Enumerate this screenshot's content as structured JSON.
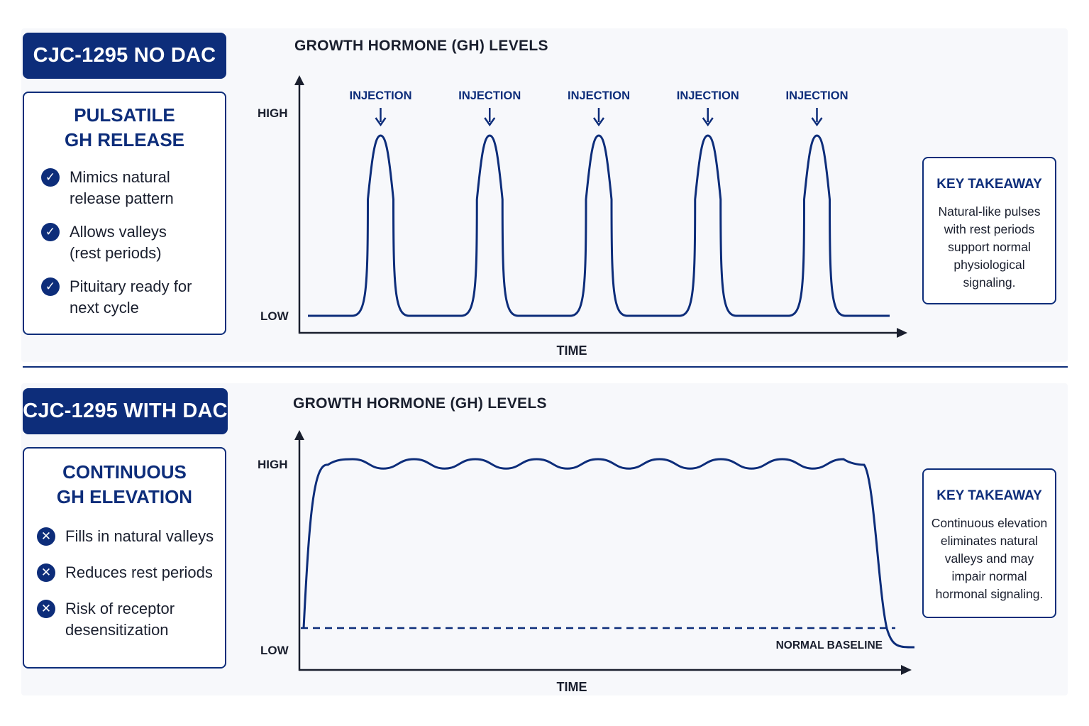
{
  "top": {
    "badge": "CJC-1295 NO DAC",
    "info_heading": "PULSATILE\nGH RELEASE",
    "bullets": [
      {
        "icon": "check-icon",
        "text": "Mimics natural\nrelease pattern"
      },
      {
        "icon": "check-icon",
        "text": "Allows valleys\n(rest periods)"
      },
      {
        "icon": "check-icon",
        "text": "Pituitary ready for\nnext cycle"
      }
    ],
    "chart_title": "GROWTH HORMONE (GH) LEVELS",
    "takeaway_title": "KEY TAKEAWAY",
    "takeaway_text": "Natural-like pulses\nwith rest periods\nsupport normal\nphysiological\nsignaling."
  },
  "bottom": {
    "badge": "CJC-1295 WITH DAC",
    "info_heading": "CONTINUOUS\nGH ELEVATION",
    "bullets": [
      {
        "icon": "x-icon",
        "text": "Fills in natural valleys"
      },
      {
        "icon": "x-icon",
        "text": "Reduces rest periods"
      },
      {
        "icon": "x-icon",
        "text": "Risk of receptor\ndesensitization"
      }
    ],
    "chart_title": "GROWTH HORMONE (GH) LEVELS",
    "takeaway_title": "KEY TAKEAWAY",
    "takeaway_text": "Continuous elevation\neliminates natural\nvalleys and may\nimpair normal\nhormonal signaling."
  },
  "chart_data": [
    {
      "type": "line",
      "title": "GROWTH HORMONE (GH) LEVELS",
      "xlabel": "TIME",
      "ylabel": "",
      "y_tick_labels": [
        "LOW",
        "HIGH"
      ],
      "annotations": [
        "INJECTION",
        "INJECTION",
        "INJECTION",
        "INJECTION",
        "INJECTION"
      ],
      "series": [
        {
          "values": [
            0,
            0,
            1,
            0,
            0,
            1,
            0,
            0,
            1,
            0,
            0,
            1,
            0,
            0,
            1,
            0,
            0
          ]
        }
      ]
    },
    {
      "type": "line",
      "title": "GROWTH HORMONE (GH) LEVELS",
      "xlabel": "TIME",
      "ylabel": "",
      "y_tick_labels": [
        "LOW",
        "HIGH"
      ],
      "reference_line_label": "NORMAL BASELINE",
      "series": [
        {
          "values": [
            0.1,
            0.97,
            1.0,
            0.96,
            1.0,
            0.96,
            1.0,
            0.96,
            1.0,
            0.96,
            1.0,
            0.96,
            1.0,
            0.97,
            0.97,
            0.1,
            0.0
          ]
        }
      ]
    }
  ],
  "colors": {
    "navy": "#0d2d7a",
    "text": "#1a1f2e",
    "panel": "#f7f8fb"
  }
}
